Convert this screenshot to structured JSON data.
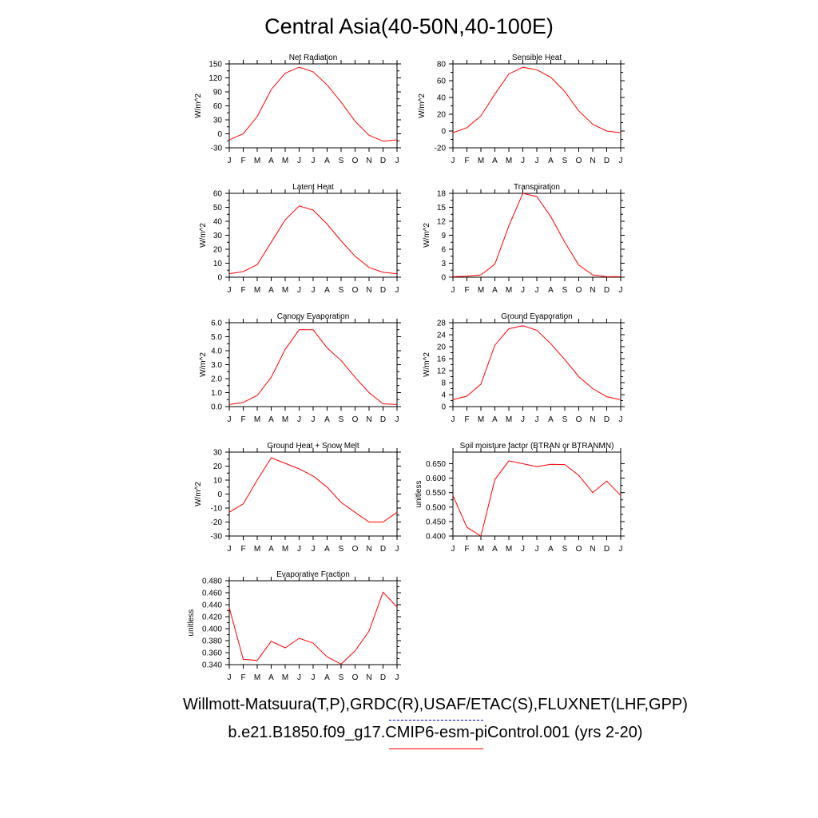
{
  "title": "Central Asia(40-50N,40-100E)",
  "footer": {
    "obs_label": "Willmott-Matsuura(T,P),GRDC(R),USAF/ETAC(S),FLUXNET(LHF,GPP)",
    "model_label": "b.e21.B1850.f09_g17.CMIP6-esm-piControl.001 (yrs 2-20)",
    "obs_color": "#0000ff",
    "model_color": "#ff0000"
  },
  "months": [
    "J",
    "F",
    "M",
    "A",
    "M",
    "J",
    "J",
    "A",
    "S",
    "O",
    "N",
    "D",
    "J"
  ],
  "chart_data": [
    {
      "type": "line",
      "title": "Net Radiation",
      "ylabel": "W/m^2",
      "ylim": [
        -30,
        150
      ],
      "yticks": [
        "-30",
        "-15",
        "0",
        "15",
        "30",
        "45",
        "60",
        "75",
        "90",
        "105",
        "120",
        "135",
        "150"
      ],
      "ytick_labels": [
        "-30",
        "0",
        "30",
        "60",
        "90",
        "120",
        "150"
      ],
      "categories": [
        "J",
        "F",
        "M",
        "A",
        "M",
        "J",
        "J",
        "A",
        "S",
        "O",
        "N",
        "D",
        "J"
      ],
      "series": [
        {
          "color": "#ff0000",
          "values": [
            -13,
            0,
            37,
            95,
            130,
            143,
            133,
            105,
            68,
            27,
            -3,
            -16,
            -13
          ]
        }
      ]
    },
    {
      "type": "line",
      "title": "Sensible Heat",
      "ylabel": "W/m^2",
      "ylim": [
        -20,
        80
      ],
      "ytick_labels": [
        "-20",
        "0",
        "20",
        "40",
        "60",
        "80"
      ],
      "categories": [
        "J",
        "F",
        "M",
        "A",
        "M",
        "J",
        "J",
        "A",
        "S",
        "O",
        "N",
        "D",
        "J"
      ],
      "series": [
        {
          "color": "#ff0000",
          "values": [
            -2,
            4,
            18,
            44,
            68,
            76,
            73,
            64,
            47,
            24,
            8,
            0,
            -2
          ]
        }
      ]
    },
    {
      "type": "line",
      "title": "Latent Heat",
      "ylabel": "W/m^2",
      "ylim": [
        0,
        60
      ],
      "ytick_labels": [
        "0",
        "10",
        "20",
        "30",
        "40",
        "50",
        "60"
      ],
      "categories": [
        "J",
        "F",
        "M",
        "A",
        "M",
        "J",
        "J",
        "A",
        "S",
        "O",
        "N",
        "D",
        "J"
      ],
      "series": [
        {
          "color": "#ff0000",
          "values": [
            2.5,
            4,
            9,
            25,
            41,
            51,
            48,
            38,
            26,
            15,
            7,
            3.5,
            2.5
          ]
        }
      ]
    },
    {
      "type": "line",
      "title": "Transpiration",
      "ylabel": "W/m^2",
      "ylim": [
        0,
        18
      ],
      "ytick_labels": [
        "0",
        "3",
        "6",
        "9",
        "12",
        "15",
        "18"
      ],
      "categories": [
        "J",
        "F",
        "M",
        "A",
        "M",
        "J",
        "J",
        "A",
        "S",
        "O",
        "N",
        "D",
        "J"
      ],
      "series": [
        {
          "color": "#ff0000",
          "values": [
            0.1,
            0.2,
            0.5,
            2.8,
            11,
            18,
            17.3,
            13,
            7.5,
            2.6,
            0.5,
            0.1,
            0.1
          ]
        }
      ]
    },
    {
      "type": "line",
      "title": "Canopy Evaporation",
      "ylabel": "W/m^2",
      "ylim": [
        0,
        6
      ],
      "ytick_labels": [
        "0.0",
        "1.0",
        "2.0",
        "3.0",
        "4.0",
        "5.0",
        "6.0"
      ],
      "categories": [
        "J",
        "F",
        "M",
        "A",
        "M",
        "J",
        "J",
        "A",
        "S",
        "O",
        "N",
        "D",
        "J"
      ],
      "series": [
        {
          "color": "#ff0000",
          "values": [
            0.15,
            0.3,
            0.8,
            2.1,
            4.1,
            5.5,
            5.5,
            4.2,
            3.3,
            2.1,
            1.0,
            0.2,
            0.15
          ]
        }
      ]
    },
    {
      "type": "line",
      "title": "Ground Evaporation",
      "ylabel": "W/m^2",
      "ylim": [
        0,
        28
      ],
      "ytick_labels": [
        "0",
        "4",
        "8",
        "12",
        "16",
        "20",
        "24",
        "28"
      ],
      "categories": [
        "J",
        "F",
        "M",
        "A",
        "M",
        "J",
        "J",
        "A",
        "S",
        "O",
        "N",
        "D",
        "J"
      ],
      "series": [
        {
          "color": "#ff0000",
          "values": [
            2.3,
            3.5,
            7.5,
            20.5,
            26,
            27,
            25.5,
            21,
            15.7,
            10,
            6,
            3.3,
            2.3
          ]
        }
      ]
    },
    {
      "type": "line",
      "title": "Ground Heat + Snow Melt",
      "ylabel": "W/m^2",
      "ylim": [
        -30,
        30
      ],
      "ytick_labels": [
        "-30",
        "-20",
        "-10",
        "0",
        "10",
        "20",
        "30"
      ],
      "categories": [
        "J",
        "F",
        "M",
        "A",
        "M",
        "J",
        "J",
        "A",
        "S",
        "O",
        "N",
        "D",
        "J"
      ],
      "series": [
        {
          "color": "#ff0000",
          "values": [
            -13,
            -7,
            10,
            26,
            22,
            18,
            13,
            5,
            -6,
            -13,
            -20,
            -20,
            -13
          ]
        }
      ]
    },
    {
      "type": "line",
      "title": "Soil moisture factor (BTRAN or BTRANMN)",
      "ylabel": "unitless",
      "ylim": [
        0.4,
        0.69
      ],
      "ytick_labels": [
        "0.400",
        "0.450",
        "0.500",
        "0.550",
        "0.600",
        "0.650"
      ],
      "categories": [
        "J",
        "F",
        "M",
        "A",
        "M",
        "J",
        "J",
        "A",
        "S",
        "O",
        "N",
        "D",
        "J"
      ],
      "series": [
        {
          "color": "#ff0000",
          "values": [
            0.54,
            0.43,
            0.4,
            0.595,
            0.66,
            0.65,
            0.64,
            0.648,
            0.647,
            0.61,
            0.55,
            0.59,
            0.54
          ]
        }
      ]
    },
    {
      "type": "line",
      "title": "Evaporative Fraction",
      "ylabel": "unitless",
      "ylim": [
        0.34,
        0.48
      ],
      "ytick_labels": [
        "0.340",
        "0.360",
        "0.380",
        "0.400",
        "0.420",
        "0.440",
        "0.460",
        "0.480"
      ],
      "categories": [
        "J",
        "F",
        "M",
        "A",
        "M",
        "J",
        "J",
        "A",
        "S",
        "O",
        "N",
        "D",
        "J"
      ],
      "series": [
        {
          "color": "#ff0000",
          "values": [
            0.435,
            0.349,
            0.347,
            0.379,
            0.368,
            0.384,
            0.376,
            0.353,
            0.341,
            0.363,
            0.396,
            0.461,
            0.436
          ]
        }
      ]
    }
  ]
}
